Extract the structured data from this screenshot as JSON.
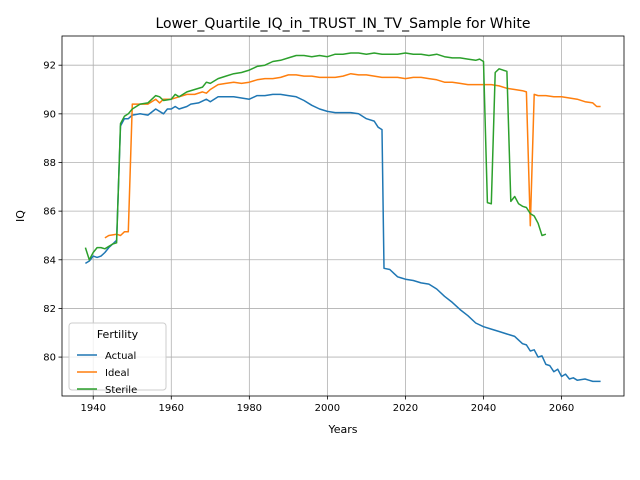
{
  "chart_data": {
    "type": "line",
    "title": "Lower_Quartile_IQ_in_TRUST_IN_TV_Sample for White",
    "xlabel": "Years",
    "ylabel": "IQ",
    "xlim": [
      1932,
      2076
    ],
    "ylim": [
      78.4,
      93.2
    ],
    "xticks": [
      1940,
      1960,
      1980,
      2000,
      2020,
      2040,
      2060
    ],
    "yticks": [
      80,
      82,
      84,
      86,
      88,
      90,
      92
    ],
    "grid": true,
    "legend": {
      "title": "Fertility",
      "placement": "lower-left"
    },
    "series": [
      {
        "name": "Actual",
        "color": "#1f77b4",
        "points": [
          [
            1938,
            83.85
          ],
          [
            1939,
            83.95
          ],
          [
            1940,
            84.15
          ],
          [
            1941,
            84.1
          ],
          [
            1942,
            84.15
          ],
          [
            1943,
            84.3
          ],
          [
            1944,
            84.5
          ],
          [
            1945,
            84.65
          ],
          [
            1946,
            84.8
          ],
          [
            1947,
            89.5
          ],
          [
            1948,
            89.8
          ],
          [
            1949,
            89.8
          ],
          [
            1950,
            89.95
          ],
          [
            1952,
            90.0
          ],
          [
            1954,
            89.95
          ],
          [
            1956,
            90.2
          ],
          [
            1958,
            90.0
          ],
          [
            1959,
            90.2
          ],
          [
            1960,
            90.2
          ],
          [
            1961,
            90.3
          ],
          [
            1962,
            90.2
          ],
          [
            1964,
            90.3
          ],
          [
            1965,
            90.4
          ],
          [
            1967,
            90.45
          ],
          [
            1969,
            90.6
          ],
          [
            1970,
            90.5
          ],
          [
            1972,
            90.7
          ],
          [
            1974,
            90.7
          ],
          [
            1976,
            90.7
          ],
          [
            1978,
            90.65
          ],
          [
            1980,
            90.6
          ],
          [
            1982,
            90.75
          ],
          [
            1984,
            90.75
          ],
          [
            1986,
            90.8
          ],
          [
            1988,
            90.8
          ],
          [
            1990,
            90.75
          ],
          [
            1992,
            90.7
          ],
          [
            1994,
            90.55
          ],
          [
            1996,
            90.35
          ],
          [
            1998,
            90.2
          ],
          [
            2000,
            90.1
          ],
          [
            2002,
            90.05
          ],
          [
            2004,
            90.05
          ],
          [
            2006,
            90.05
          ],
          [
            2008,
            90.0
          ],
          [
            2010,
            89.8
          ],
          [
            2012,
            89.7
          ],
          [
            2013,
            89.45
          ],
          [
            2014,
            89.35
          ],
          [
            2014.5,
            83.65
          ],
          [
            2016,
            83.6
          ],
          [
            2017,
            83.45
          ],
          [
            2018,
            83.3
          ],
          [
            2019,
            83.25
          ],
          [
            2020,
            83.2
          ],
          [
            2022,
            83.15
          ],
          [
            2024,
            83.05
          ],
          [
            2026,
            83.0
          ],
          [
            2028,
            82.8
          ],
          [
            2030,
            82.5
          ],
          [
            2032,
            82.25
          ],
          [
            2034,
            81.95
          ],
          [
            2036,
            81.7
          ],
          [
            2038,
            81.4
          ],
          [
            2040,
            81.25
          ],
          [
            2042,
            81.15
          ],
          [
            2044,
            81.05
          ],
          [
            2046,
            80.95
          ],
          [
            2048,
            80.85
          ],
          [
            2049,
            80.7
          ],
          [
            2050,
            80.55
          ],
          [
            2051,
            80.5
          ],
          [
            2052,
            80.25
          ],
          [
            2053,
            80.3
          ],
          [
            2054,
            80.0
          ],
          [
            2055,
            80.05
          ],
          [
            2056,
            79.7
          ],
          [
            2057,
            79.65
          ],
          [
            2058,
            79.4
          ],
          [
            2059,
            79.5
          ],
          [
            2060,
            79.2
          ],
          [
            2061,
            79.3
          ],
          [
            2062,
            79.1
          ],
          [
            2063,
            79.15
          ],
          [
            2064,
            79.05
          ],
          [
            2066,
            79.1
          ],
          [
            2067,
            79.05
          ],
          [
            2068,
            79.0
          ],
          [
            2070,
            79.0
          ]
        ]
      },
      {
        "name": "Ideal",
        "color": "#ff7f0e",
        "points": [
          [
            1943,
            84.9
          ],
          [
            1944,
            85.0
          ],
          [
            1946,
            85.05
          ],
          [
            1947,
            85.0
          ],
          [
            1948,
            85.15
          ],
          [
            1949,
            85.15
          ],
          [
            1950,
            90.4
          ],
          [
            1952,
            90.4
          ],
          [
            1954,
            90.4
          ],
          [
            1956,
            90.6
          ],
          [
            1957,
            90.45
          ],
          [
            1958,
            90.6
          ],
          [
            1960,
            90.6
          ],
          [
            1962,
            90.7
          ],
          [
            1964,
            90.8
          ],
          [
            1966,
            90.8
          ],
          [
            1968,
            90.9
          ],
          [
            1969,
            90.85
          ],
          [
            1970,
            91.0
          ],
          [
            1972,
            91.2
          ],
          [
            1974,
            91.25
          ],
          [
            1976,
            91.3
          ],
          [
            1978,
            91.25
          ],
          [
            1980,
            91.3
          ],
          [
            1982,
            91.4
          ],
          [
            1984,
            91.45
          ],
          [
            1986,
            91.45
          ],
          [
            1988,
            91.5
          ],
          [
            1990,
            91.6
          ],
          [
            1992,
            91.6
          ],
          [
            1994,
            91.55
          ],
          [
            1996,
            91.55
          ],
          [
            1998,
            91.5
          ],
          [
            2000,
            91.5
          ],
          [
            2002,
            91.5
          ],
          [
            2004,
            91.55
          ],
          [
            2006,
            91.65
          ],
          [
            2008,
            91.6
          ],
          [
            2010,
            91.6
          ],
          [
            2012,
            91.55
          ],
          [
            2014,
            91.5
          ],
          [
            2016,
            91.5
          ],
          [
            2018,
            91.5
          ],
          [
            2020,
            91.45
          ],
          [
            2022,
            91.5
          ],
          [
            2024,
            91.5
          ],
          [
            2026,
            91.45
          ],
          [
            2028,
            91.4
          ],
          [
            2030,
            91.3
          ],
          [
            2032,
            91.3
          ],
          [
            2034,
            91.25
          ],
          [
            2036,
            91.2
          ],
          [
            2038,
            91.2
          ],
          [
            2040,
            91.2
          ],
          [
            2042,
            91.2
          ],
          [
            2044,
            91.15
          ],
          [
            2046,
            91.05
          ],
          [
            2048,
            91.0
          ],
          [
            2050,
            90.95
          ],
          [
            2051,
            90.9
          ],
          [
            2052,
            85.4
          ],
          [
            2053,
            90.8
          ],
          [
            2054,
            90.75
          ],
          [
            2056,
            90.75
          ],
          [
            2058,
            90.7
          ],
          [
            2060,
            90.7
          ],
          [
            2062,
            90.65
          ],
          [
            2064,
            90.6
          ],
          [
            2066,
            90.5
          ],
          [
            2068,
            90.45
          ],
          [
            2069,
            90.3
          ],
          [
            2070,
            90.3
          ]
        ]
      },
      {
        "name": "Sterile",
        "color": "#2ca02c",
        "points": [
          [
            1938,
            84.5
          ],
          [
            1939,
            84.0
          ],
          [
            1940,
            84.3
          ],
          [
            1941,
            84.5
          ],
          [
            1942,
            84.5
          ],
          [
            1943,
            84.45
          ],
          [
            1944,
            84.55
          ],
          [
            1945,
            84.65
          ],
          [
            1946,
            84.7
          ],
          [
            1947,
            89.6
          ],
          [
            1948,
            89.9
          ],
          [
            1949,
            90.0
          ],
          [
            1950,
            90.2
          ],
          [
            1952,
            90.4
          ],
          [
            1954,
            90.45
          ],
          [
            1956,
            90.75
          ],
          [
            1957,
            90.7
          ],
          [
            1958,
            90.55
          ],
          [
            1960,
            90.6
          ],
          [
            1961,
            90.8
          ],
          [
            1962,
            90.7
          ],
          [
            1964,
            90.9
          ],
          [
            1966,
            91.0
          ],
          [
            1968,
            91.1
          ],
          [
            1969,
            91.3
          ],
          [
            1970,
            91.25
          ],
          [
            1972,
            91.45
          ],
          [
            1974,
            91.55
          ],
          [
            1976,
            91.65
          ],
          [
            1978,
            91.7
          ],
          [
            1980,
            91.8
          ],
          [
            1982,
            91.95
          ],
          [
            1984,
            92.0
          ],
          [
            1986,
            92.15
          ],
          [
            1988,
            92.2
          ],
          [
            1990,
            92.3
          ],
          [
            1992,
            92.4
          ],
          [
            1994,
            92.4
          ],
          [
            1996,
            92.35
          ],
          [
            1998,
            92.4
          ],
          [
            2000,
            92.35
          ],
          [
            2002,
            92.45
          ],
          [
            2004,
            92.45
          ],
          [
            2006,
            92.5
          ],
          [
            2008,
            92.5
          ],
          [
            2010,
            92.45
          ],
          [
            2012,
            92.5
          ],
          [
            2014,
            92.45
          ],
          [
            2016,
            92.45
          ],
          [
            2018,
            92.45
          ],
          [
            2020,
            92.5
          ],
          [
            2022,
            92.45
          ],
          [
            2024,
            92.45
          ],
          [
            2026,
            92.4
          ],
          [
            2028,
            92.45
          ],
          [
            2030,
            92.35
          ],
          [
            2032,
            92.3
          ],
          [
            2034,
            92.3
          ],
          [
            2036,
            92.25
          ],
          [
            2038,
            92.2
          ],
          [
            2039,
            92.25
          ],
          [
            2040,
            92.15
          ],
          [
            2041,
            86.35
          ],
          [
            2042,
            86.3
          ],
          [
            2043,
            91.7
          ],
          [
            2044,
            91.85
          ],
          [
            2045,
            91.8
          ],
          [
            2046,
            91.75
          ],
          [
            2047,
            86.4
          ],
          [
            2048,
            86.6
          ],
          [
            2049,
            86.3
          ],
          [
            2050,
            86.2
          ],
          [
            2051,
            86.15
          ],
          [
            2052,
            85.9
          ],
          [
            2053,
            85.8
          ],
          [
            2054,
            85.5
          ],
          [
            2055,
            85.0
          ],
          [
            2056,
            85.05
          ]
        ]
      }
    ]
  }
}
